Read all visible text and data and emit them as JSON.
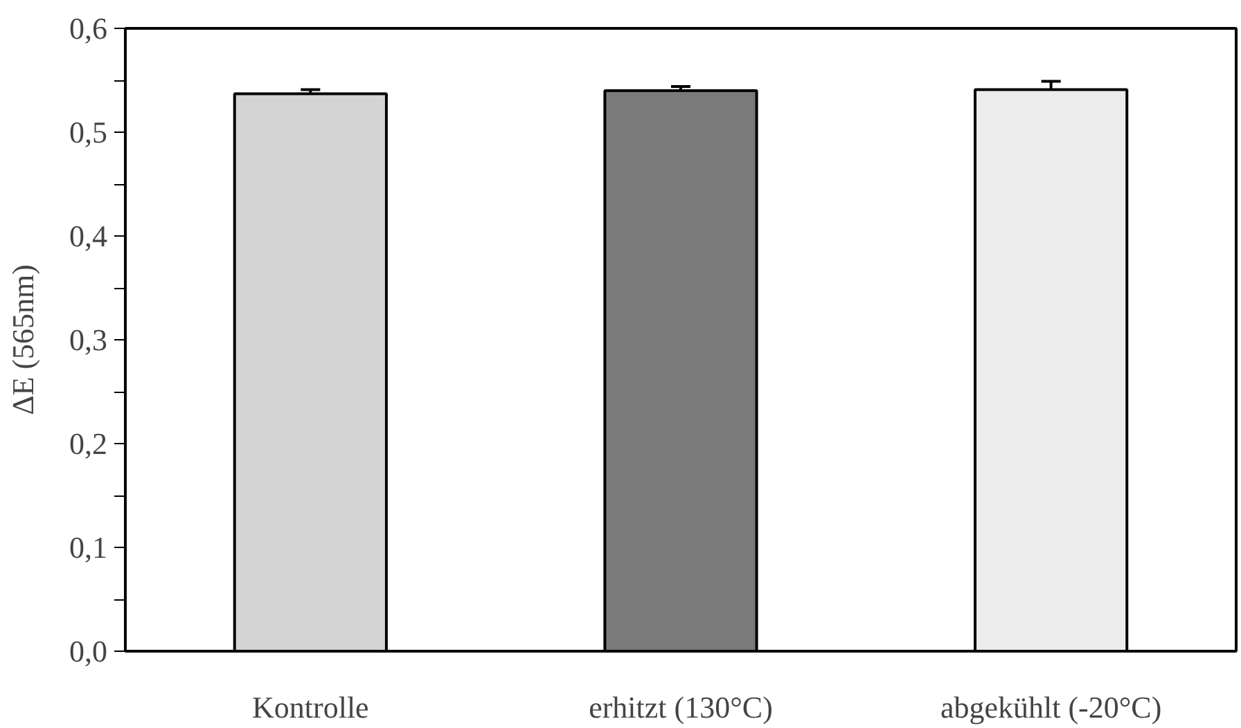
{
  "chart_data": {
    "type": "bar",
    "ylabel": "ΔE (565nm)",
    "categories": [
      "Kontrolle",
      "erhitzt (130°C)",
      "abgekühlt (-20°C)"
    ],
    "values": [
      0.537,
      0.54,
      0.541
    ],
    "errors": [
      0.004,
      0.004,
      0.008
    ],
    "colors": [
      "#d4d4d4",
      "#7a7a7a",
      "#ececec"
    ],
    "ylim": [
      0,
      0.6
    ],
    "yticks": [
      {
        "value": 0,
        "label": "0,0"
      },
      {
        "value": 0.05,
        "label": null
      },
      {
        "value": 0.1,
        "label": "0,1"
      },
      {
        "value": 0.15,
        "label": null
      },
      {
        "value": 0.2,
        "label": "0,2"
      },
      {
        "value": 0.25,
        "label": null
      },
      {
        "value": 0.3,
        "label": "0,3"
      },
      {
        "value": 0.35,
        "label": null
      },
      {
        "value": 0.4,
        "label": "0,4"
      },
      {
        "value": 0.45,
        "label": null
      },
      {
        "value": 0.5,
        "label": "0,5"
      },
      {
        "value": 0.55,
        "label": null
      },
      {
        "value": 0.6,
        "label": "0,6"
      }
    ],
    "grid": false
  }
}
